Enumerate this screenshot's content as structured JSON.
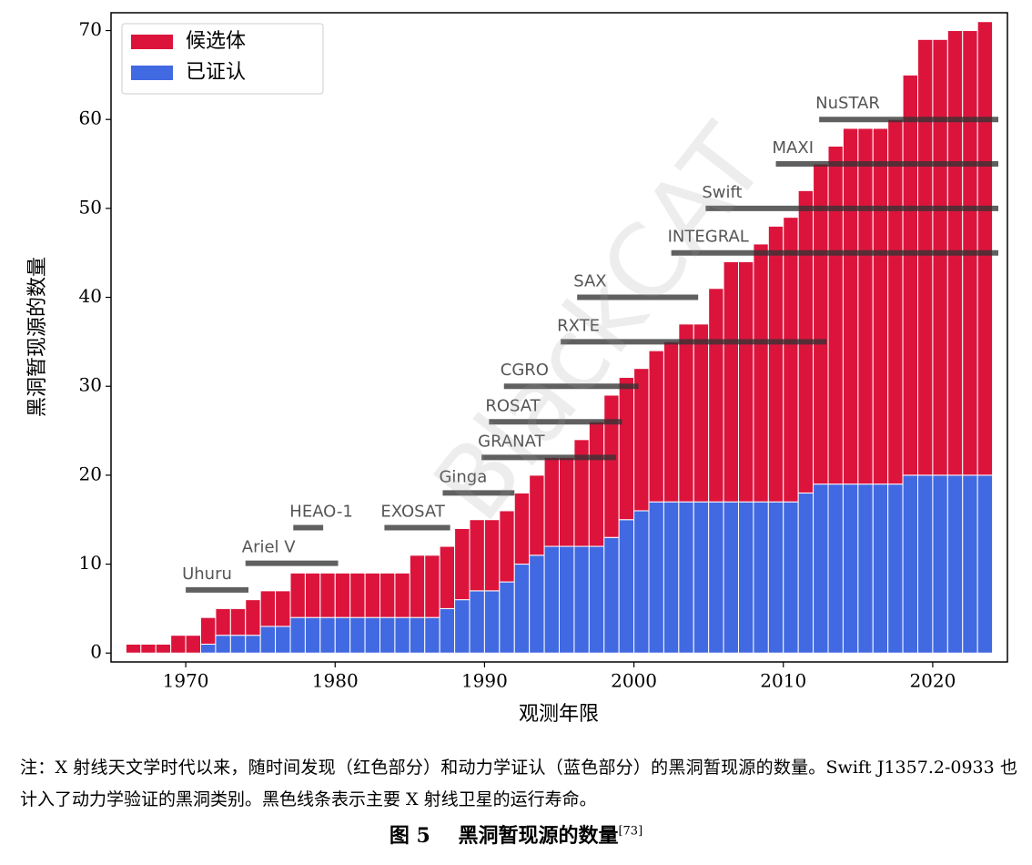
{
  "chart_data": {
    "type": "stacked_bar",
    "x": [
      1966,
      1967,
      1968,
      1969,
      1970,
      1971,
      1972,
      1973,
      1974,
      1975,
      1976,
      1977,
      1978,
      1979,
      1980,
      1981,
      1982,
      1983,
      1984,
      1985,
      1986,
      1987,
      1988,
      1989,
      1990,
      1991,
      1992,
      1993,
      1994,
      1995,
      1996,
      1997,
      1998,
      1999,
      2000,
      2001,
      2002,
      2003,
      2004,
      2005,
      2006,
      2007,
      2008,
      2009,
      2010,
      2011,
      2012,
      2013,
      2014,
      2015,
      2016,
      2017,
      2018,
      2019,
      2020,
      2021,
      2022,
      2023
    ],
    "series": [
      {
        "name": "已证认",
        "color": "#4169e1",
        "values": [
          0,
          0,
          0,
          0,
          0,
          1,
          2,
          2,
          2,
          3,
          3,
          4,
          4,
          4,
          4,
          4,
          4,
          4,
          4,
          4,
          4,
          5,
          6,
          7,
          7,
          8,
          10,
          11,
          12,
          12,
          12,
          12,
          13,
          15,
          16,
          17,
          17,
          17,
          17,
          17,
          17,
          17,
          17,
          17,
          17,
          18,
          19,
          19,
          19,
          19,
          19,
          19,
          20,
          20,
          20,
          20,
          20,
          20
        ]
      },
      {
        "name": "候选体",
        "color": "#dc143c",
        "values": [
          1,
          1,
          1,
          2,
          2,
          3,
          3,
          3,
          4,
          4,
          4,
          5,
          5,
          5,
          5,
          5,
          5,
          5,
          5,
          7,
          7,
          7,
          8,
          8,
          8,
          8,
          8,
          9,
          10,
          10,
          12,
          14,
          16,
          16,
          16,
          17,
          18,
          20,
          20,
          24,
          27,
          27,
          29,
          31,
          32,
          34,
          36,
          38,
          40,
          40,
          40,
          41,
          45,
          49,
          49,
          50,
          50,
          51
        ]
      }
    ],
    "missions": [
      {
        "name": "Uhuru",
        "start": 1970,
        "end": 1974.2,
        "y": 7.1
      },
      {
        "name": "Ariel V",
        "start": 1974,
        "end": 1980.2,
        "y": 10.1
      },
      {
        "name": "HEAO-1",
        "start": 1977.2,
        "end": 1979.2,
        "y": 14.1
      },
      {
        "name": "EXOSAT",
        "start": 1983.3,
        "end": 1987.7,
        "y": 14.1
      },
      {
        "name": "Ginga",
        "start": 1987.2,
        "end": 1992,
        "y": 18
      },
      {
        "name": "GRANAT",
        "start": 1989.8,
        "end": 1998.8,
        "y": 22
      },
      {
        "name": "ROSAT",
        "start": 1990.3,
        "end": 1999.2,
        "y": 26
      },
      {
        "name": "CGRO",
        "start": 1991.3,
        "end": 2000.3,
        "y": 30
      },
      {
        "name": "RXTE",
        "start": 1995.1,
        "end": 2012.9,
        "y": 35
      },
      {
        "name": "SAX",
        "start": 1996.2,
        "end": 2004.3,
        "y": 40
      },
      {
        "name": "INTEGRAL",
        "start": 2002.5,
        "end": 2024.5,
        "y": 45
      },
      {
        "name": "Swift",
        "start": 2004.8,
        "end": 2024.5,
        "y": 50
      },
      {
        "name": "MAXI",
        "start": 2009.5,
        "end": 2024.5,
        "y": 55
      },
      {
        "name": "NuSTAR",
        "start": 2012.4,
        "end": 2024.5,
        "y": 60
      }
    ],
    "xlabel": "观测年限",
    "ylabel": "黑洞暂现源的数量",
    "xlim": [
      1965,
      2025
    ],
    "xticks": [
      1970,
      1980,
      1990,
      2000,
      2010,
      2020
    ],
    "ylim": [
      -1,
      72
    ],
    "yticks": [
      0,
      10,
      20,
      30,
      40,
      50,
      60,
      70
    ],
    "legend": "upper left",
    "watermark": "BlackCAT"
  },
  "caption": {
    "note": "注：X 射线天文学时代以来，随时间发现（红色部分）和动力学证认（蓝色部分）的黑洞暂现源的数量。Swift J1357.2-0933 也计入了动力学验证的黑洞类别。黑色线条表示主要 X 射线卫星的运行寿命。",
    "label": "图 5",
    "title": "黑洞暂现源的数量",
    "ref": "[73]"
  }
}
